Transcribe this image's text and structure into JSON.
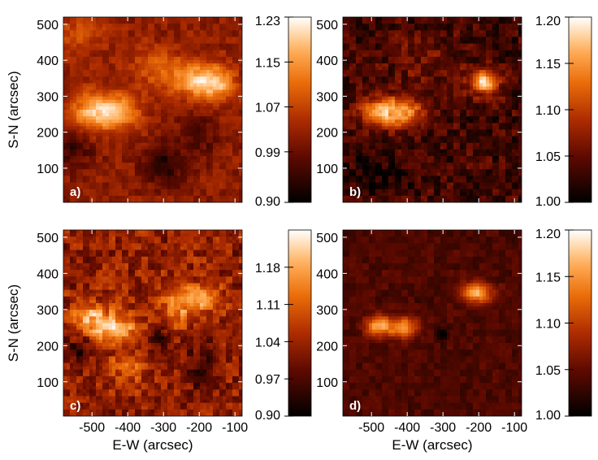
{
  "chart_data": [
    {
      "panel_label": "a)",
      "type": "heatmap",
      "ylabel": "S-N (arcsec)",
      "xlabel": "",
      "xlim": [
        -580,
        -80
      ],
      "ylim": [
        5,
        520
      ],
      "x_ticks": [
        -500,
        -400,
        -300,
        -200,
        -100
      ],
      "y_ticks": [
        100,
        200,
        300,
        400,
        500
      ],
      "colorbar": {
        "range": [
          0.9,
          1.23
        ],
        "tick_labels": [
          "1.23",
          "1.15",
          "1.07",
          "0.99",
          "0.90"
        ],
        "tick_values": [
          1.23,
          1.15,
          1.07,
          0.99,
          0.9
        ]
      },
      "field": {
        "background": 1.02,
        "blobs": [
          {
            "x": -500,
            "y": 255,
            "sx": 45,
            "sy": 38,
            "amp": 0.15
          },
          {
            "x": -420,
            "y": 260,
            "sx": 40,
            "sy": 35,
            "amp": 0.13
          },
          {
            "x": -200,
            "y": 345,
            "sx": 55,
            "sy": 35,
            "amp": 0.15
          },
          {
            "x": -150,
            "y": 330,
            "sx": 35,
            "sy": 30,
            "amp": 0.09
          },
          {
            "x": -320,
            "y": 380,
            "sx": 50,
            "sy": 40,
            "amp": 0.07
          },
          {
            "x": -550,
            "y": 470,
            "sx": 60,
            "sy": 40,
            "amp": 0.06
          },
          {
            "x": -300,
            "y": 110,
            "sx": 40,
            "sy": 40,
            "amp": -0.09
          },
          {
            "x": -550,
            "y": 160,
            "sx": 40,
            "sy": 40,
            "amp": -0.07
          },
          {
            "x": -200,
            "y": 190,
            "sx": 35,
            "sy": 45,
            "amp": -0.06
          }
        ]
      }
    },
    {
      "panel_label": "b)",
      "type": "heatmap",
      "ylabel": "",
      "xlabel": "",
      "xlim": [
        -580,
        -80
      ],
      "ylim": [
        5,
        520
      ],
      "x_ticks": [
        -500,
        -400,
        -300,
        -200,
        -100
      ],
      "y_ticks": [
        100,
        200,
        300,
        400,
        500
      ],
      "colorbar": {
        "range": [
          1.0,
          1.2
        ],
        "tick_labels": [
          "1.20",
          "1.15",
          "1.10",
          "1.05",
          "1.00"
        ],
        "tick_values": [
          1.2,
          1.15,
          1.1,
          1.05,
          1.0
        ]
      },
      "field": {
        "background": 1.035,
        "blobs": [
          {
            "x": -470,
            "y": 255,
            "sx": 45,
            "sy": 30,
            "amp": 0.11
          },
          {
            "x": -400,
            "y": 258,
            "sx": 35,
            "sy": 28,
            "amp": 0.09
          },
          {
            "x": -185,
            "y": 340,
            "sx": 30,
            "sy": 25,
            "amp": 0.14
          },
          {
            "x": -360,
            "y": 400,
            "sx": 80,
            "sy": 60,
            "amp": 0.02
          },
          {
            "x": -480,
            "y": 80,
            "sx": 60,
            "sy": 40,
            "amp": -0.025
          }
        ]
      }
    },
    {
      "panel_label": "c)",
      "type": "heatmap",
      "ylabel": "S-N (arcsec)",
      "xlabel": "E-W (arcsec)",
      "xlim": [
        -580,
        -80
      ],
      "ylim": [
        5,
        520
      ],
      "x_ticks": [
        -500,
        -400,
        -300,
        -200,
        -100
      ],
      "y_ticks": [
        100,
        200,
        300,
        400,
        500
      ],
      "colorbar": {
        "range": [
          0.9,
          1.25
        ],
        "tick_labels": [
          "1.18",
          "1.11",
          "1.04",
          "0.97",
          "0.90"
        ],
        "tick_values": [
          1.18,
          1.11,
          1.04,
          0.97,
          0.9
        ]
      },
      "field": {
        "background": 1.03,
        "blobs": [
          {
            "x": -500,
            "y": 270,
            "sx": 40,
            "sy": 35,
            "amp": 0.16
          },
          {
            "x": -420,
            "y": 245,
            "sx": 40,
            "sy": 30,
            "amp": 0.13
          },
          {
            "x": -210,
            "y": 330,
            "sx": 45,
            "sy": 30,
            "amp": 0.15
          },
          {
            "x": -270,
            "y": 290,
            "sx": 30,
            "sy": 40,
            "amp": 0.07
          },
          {
            "x": -400,
            "y": 140,
            "sx": 40,
            "sy": 35,
            "amp": 0.07
          },
          {
            "x": -310,
            "y": 220,
            "sx": 20,
            "sy": 20,
            "amp": -0.1
          },
          {
            "x": -540,
            "y": 190,
            "sx": 35,
            "sy": 35,
            "amp": -0.07
          },
          {
            "x": -200,
            "y": 140,
            "sx": 40,
            "sy": 50,
            "amp": -0.06
          }
        ],
        "texture": 0.05
      }
    },
    {
      "panel_label": "d)",
      "type": "heatmap",
      "ylabel": "",
      "xlabel": "E-W (arcsec)",
      "xlim": [
        -580,
        -80
      ],
      "ylim": [
        5,
        520
      ],
      "x_ticks": [
        -500,
        -400,
        -300,
        -200,
        -100
      ],
      "y_ticks": [
        100,
        200,
        300,
        400,
        500
      ],
      "colorbar": {
        "range": [
          1.0,
          1.2
        ],
        "tick_labels": [
          "1.20",
          "1.15",
          "1.10",
          "1.05",
          "1.00"
        ],
        "tick_values": [
          1.2,
          1.15,
          1.1,
          1.05,
          1.0
        ]
      },
      "field": {
        "background": 1.04,
        "blobs": [
          {
            "x": -480,
            "y": 255,
            "sx": 25,
            "sy": 20,
            "amp": 0.12
          },
          {
            "x": -410,
            "y": 250,
            "sx": 30,
            "sy": 20,
            "amp": 0.11
          },
          {
            "x": -205,
            "y": 345,
            "sx": 30,
            "sy": 20,
            "amp": 0.12
          },
          {
            "x": -300,
            "y": 230,
            "sx": 12,
            "sy": 12,
            "amp": -0.045
          }
        ],
        "texture": 0.012
      }
    }
  ]
}
